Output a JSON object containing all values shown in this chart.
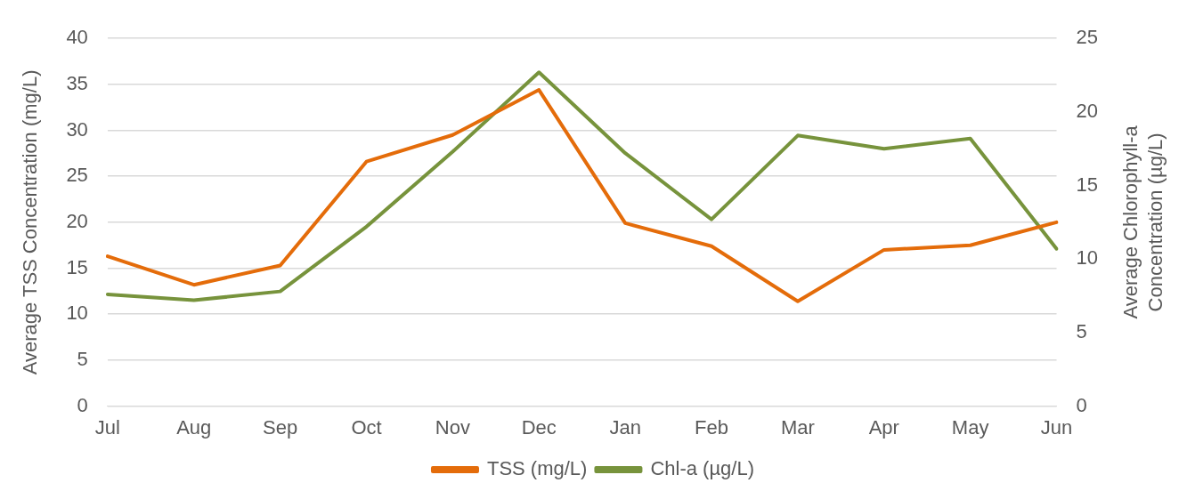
{
  "chart_data": {
    "type": "line",
    "ylabel": "Average TSS Concentration (mg/L)",
    "y2label": "Average Chlorophyll-a Concentration (µg/L)",
    "categories": [
      "Jul",
      "Aug",
      "Sep",
      "Oct",
      "Nov",
      "Dec",
      "Jan",
      "Feb",
      "Mar",
      "Apr",
      "May",
      "Jun"
    ],
    "series": [
      {
        "name": "TSS (mg/L)",
        "color": "#e46c0a",
        "values": [
          16.3,
          13.2,
          15.3,
          26.6,
          29.5,
          34.4,
          19.9,
          17.4,
          11.4,
          17.0,
          17.5,
          20.0
        ]
      },
      {
        "name": "Chl-a (µg/L)",
        "color": "#77933c",
        "axis": "y2",
        "values": [
          7.6,
          7.2,
          7.8,
          12.2,
          17.3,
          22.7,
          17.2,
          12.7,
          18.4,
          17.5,
          18.2,
          10.7
        ]
      }
    ],
    "ylim": [
      0,
      40
    ],
    "yticks": [
      0,
      5,
      10,
      15,
      20,
      25,
      30,
      35,
      40
    ],
    "y2lim": [
      0,
      25
    ],
    "y2ticks": [
      0,
      5,
      10,
      15,
      20,
      25
    ],
    "grid": "y",
    "legend": "bottom",
    "marker": "none",
    "line_style": "solid"
  }
}
